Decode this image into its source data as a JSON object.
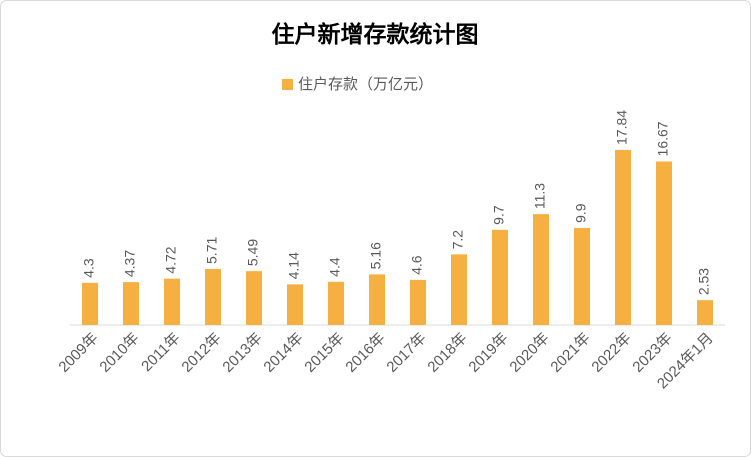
{
  "chart_data": {
    "type": "bar",
    "title": "住户新增存款统计图",
    "categories": [
      "2009年",
      "2010年",
      "2011年",
      "2012年",
      "2013年",
      "2014年",
      "2015年",
      "2016年",
      "2017年",
      "2018年",
      "2019年",
      "2020年",
      "2021年",
      "2022年",
      "2023年",
      "2024年1月"
    ],
    "series": [
      {
        "name": "住户存款（万亿元）",
        "color": "#f5b041",
        "values": [
          4.3,
          4.37,
          4.72,
          5.71,
          5.49,
          4.14,
          4.4,
          5.16,
          4.6,
          7.2,
          9.7,
          11.3,
          9.9,
          17.84,
          16.67,
          2.53
        ]
      }
    ]
  }
}
